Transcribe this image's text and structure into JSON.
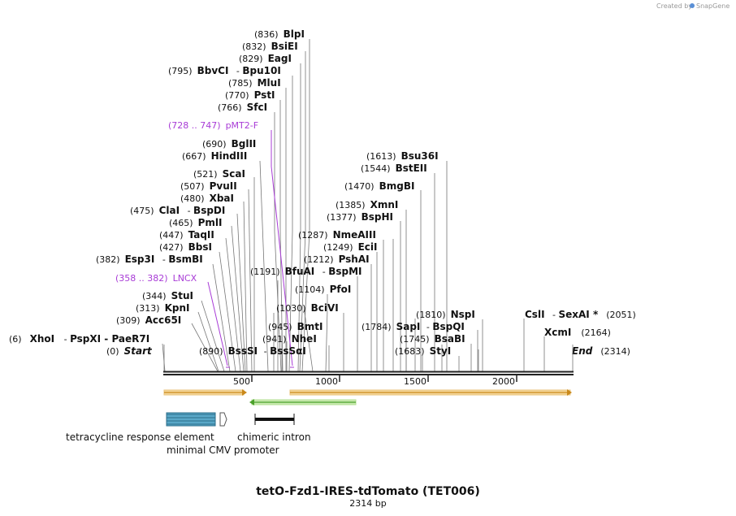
{
  "brand": {
    "created_by": "Created by",
    "name": "SnapGene"
  },
  "map": {
    "title": "tetO-Fzd1-IRES-tdTomato (TET006)",
    "length_label": "2314 bp",
    "start_label": "Start",
    "start_pos": "(0)",
    "end_label": "End",
    "end_pos": "(2314)",
    "ticks": [
      "500",
      "1000",
      "1500",
      "2000"
    ]
  },
  "enzymes": [
    {
      "pos": "(836)",
      "name": "BlpI",
      "alt": ""
    },
    {
      "pos": "(832)",
      "name": "BsiEI",
      "alt": ""
    },
    {
      "pos": "(829)",
      "name": "EagI",
      "alt": ""
    },
    {
      "pos": "(795)",
      "name": "BbvCI",
      "alt": "Bpu10I"
    },
    {
      "pos": "(785)",
      "name": "MluI",
      "alt": ""
    },
    {
      "pos": "(770)",
      "name": "PstI",
      "alt": ""
    },
    {
      "pos": "(766)",
      "name": "SfcI",
      "alt": ""
    },
    {
      "pos": "(690)",
      "name": "BglII",
      "alt": ""
    },
    {
      "pos": "(667)",
      "name": "HindIII",
      "alt": ""
    },
    {
      "pos": "(521)",
      "name": "ScaI",
      "alt": ""
    },
    {
      "pos": "(507)",
      "name": "PvuII",
      "alt": ""
    },
    {
      "pos": "(480)",
      "name": "XbaI",
      "alt": ""
    },
    {
      "pos": "(475)",
      "name": "ClaI",
      "alt": "BspDI"
    },
    {
      "pos": "(465)",
      "name": "PmlI",
      "alt": ""
    },
    {
      "pos": "(447)",
      "name": "TaqII",
      "alt": ""
    },
    {
      "pos": "(427)",
      "name": "BbsI",
      "alt": ""
    },
    {
      "pos": "(382)",
      "name": "Esp3I",
      "alt": "BsmBI"
    },
    {
      "pos": "(344)",
      "name": "StuI",
      "alt": ""
    },
    {
      "pos": "(313)",
      "name": "KpnI",
      "alt": ""
    },
    {
      "pos": "(309)",
      "name": "Acc65I",
      "alt": ""
    },
    {
      "pos": "(6)",
      "name": "XhoI",
      "alt": "PspXI - PaeR7I"
    },
    {
      "pos": "(890)",
      "name": "BssSI",
      "alt": "BssSαI"
    },
    {
      "pos": "(941)",
      "name": "NheI",
      "alt": ""
    },
    {
      "pos": "(945)",
      "name": "BmtI",
      "alt": ""
    },
    {
      "pos": "(1030)",
      "name": "BciVI",
      "alt": ""
    },
    {
      "pos": "(1104)",
      "name": "PfoI",
      "alt": ""
    },
    {
      "pos": "(1191)",
      "name": "BfuAI",
      "alt": "BspMI"
    },
    {
      "pos": "(1212)",
      "name": "PshAI",
      "alt": ""
    },
    {
      "pos": "(1249)",
      "name": "EciI",
      "alt": ""
    },
    {
      "pos": "(1287)",
      "name": "NmeAIII",
      "alt": ""
    },
    {
      "pos": "(1377)",
      "name": "BspHI",
      "alt": ""
    },
    {
      "pos": "(1385)",
      "name": "XmnI",
      "alt": ""
    },
    {
      "pos": "(1470)",
      "name": "BmgBI",
      "alt": ""
    },
    {
      "pos": "(1544)",
      "name": "BstEII",
      "alt": ""
    },
    {
      "pos": "(1613)",
      "name": "Bsu36I",
      "alt": ""
    },
    {
      "pos": "(1683)",
      "name": "StyI",
      "alt": ""
    },
    {
      "pos": "(1745)",
      "name": "BsaBI",
      "alt": ""
    },
    {
      "pos": "(1784)",
      "name": "SapI",
      "alt": "BspQI"
    },
    {
      "pos": "(1810)",
      "name": "NspI",
      "alt": ""
    },
    {
      "pos": "(2051)",
      "name": "CslI",
      "alt": "SexAI *"
    },
    {
      "pos": "(2164)",
      "name": "XcmI",
      "alt": ""
    }
  ],
  "primers": [
    {
      "pos": "(728 .. 747)",
      "name": "pMT2-F"
    },
    {
      "pos": "(358 .. 382)",
      "name": "LNCX"
    }
  ],
  "features": [
    {
      "name": "tetracycline response element"
    },
    {
      "name": "minimal CMV promoter"
    },
    {
      "name": "chimeric intron"
    }
  ],
  "colors": {
    "primer": "#a83bd6",
    "orf_fill": "#f5d79a",
    "orf_stroke": "#c9881a",
    "green_fill": "#c9eab0",
    "green_stroke": "#4aa02a",
    "tre_fill": "#5aa8c8"
  }
}
